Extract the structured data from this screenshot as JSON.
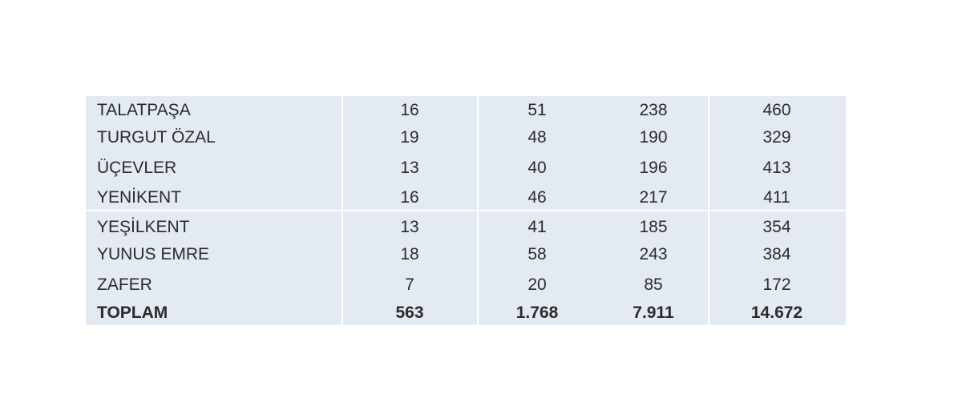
{
  "table": {
    "rows": [
      [
        "TALATPAŞA",
        "16",
        "51",
        "238",
        "460"
      ],
      [
        "TURGUT ÖZAL",
        "19",
        "48",
        "190",
        "329"
      ],
      [
        "ÜÇEVLER",
        "13",
        "40",
        "196",
        "413"
      ],
      [
        "YENİKENT",
        "16",
        "46",
        "217",
        "411"
      ],
      [
        "YEŞİLKENT",
        "13",
        "41",
        "185",
        "354"
      ],
      [
        "YUNUS EMRE",
        "18",
        "58",
        "243",
        "384"
      ],
      [
        "ZAFER",
        "7",
        "20",
        "85",
        "172"
      ],
      [
        "TOPLAM",
        "563",
        "1.768",
        "7.911",
        "14.672"
      ]
    ]
  }
}
